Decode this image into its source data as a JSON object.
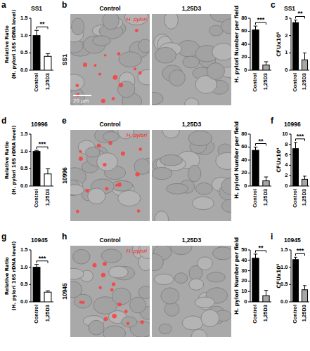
{
  "chart_data": [
    {
      "type": "bar",
      "panel": "a",
      "title": "SS1",
      "ylabel": "Relative Ratio\n(H. pylori 16S rDNA level)",
      "categories": [
        "Control",
        "1,25D3"
      ],
      "values": [
        1.0,
        0.4
      ],
      "errors": [
        0.15,
        0.08
      ],
      "colors": [
        "#000000",
        "#ffffff"
      ],
      "ylim": [
        0,
        1.5
      ],
      "yticks": [
        {
          "value": 0,
          "label": "0.0"
        },
        0.5,
        {
          "value": 1,
          "label": "1.0"
        },
        1.5
      ],
      "significance": "**"
    },
    {
      "type": "bar",
      "ylabel": "H. pylori Number per field",
      "categories": [
        "Control",
        "1,25D3"
      ],
      "values": [
        62,
        8
      ],
      "errors": [
        6,
        5
      ],
      "colors": [
        "#000000",
        "#a6a6a6"
      ],
      "ylim": [
        0,
        80
      ],
      "yticks": [
        0,
        20,
        40,
        60,
        80
      ],
      "significance": "***"
    },
    {
      "type": "bar",
      "panel": "c",
      "title": "SS1",
      "ylabel": "CFUx10⁵",
      "categories": [
        "Control",
        "1,25D3"
      ],
      "values": [
        2.75,
        0.6
      ],
      "errors": [
        0.15,
        0.4
      ],
      "colors": [
        "#000000",
        "#a6a6a6"
      ],
      "ylim": [
        0,
        3
      ],
      "yticks": [
        0,
        1,
        2,
        3
      ],
      "significance": "**"
    },
    {
      "type": "bar",
      "panel": "d",
      "title": "10996",
      "ylabel": "Relative Ratio\n(H. pylori 16S rDNA level)",
      "categories": [
        "Control",
        "1,25D3"
      ],
      "values": [
        1.0,
        0.35
      ],
      "errors": [
        0.03,
        0.15
      ],
      "colors": [
        "#000000",
        "#ffffff"
      ],
      "ylim": [
        0,
        1.5
      ],
      "yticks": [
        {
          "value": 0,
          "label": "0.0"
        },
        0.5,
        {
          "value": 1,
          "label": "1.0"
        },
        1.5
      ],
      "significance": "***"
    },
    {
      "type": "bar",
      "ylabel": "H. pylori Number per field",
      "categories": [
        "Control",
        "1,25D3"
      ],
      "values": [
        55,
        8
      ],
      "errors": [
        5,
        6
      ],
      "colors": [
        "#000000",
        "#a6a6a6"
      ],
      "ylim": [
        0,
        80
      ],
      "yticks": [
        0,
        20,
        40,
        60,
        80
      ],
      "significance": "**"
    },
    {
      "type": "bar",
      "panel": "f",
      "title": "10996",
      "ylabel": "CFUx10⁴",
      "categories": [
        "Control",
        "1,25D3"
      ],
      "values": [
        7.2,
        1.3
      ],
      "errors": [
        1.2,
        0.6
      ],
      "colors": [
        "#000000",
        "#a6a6a6"
      ],
      "ylim": [
        0,
        10
      ],
      "yticks": [
        0,
        2,
        4,
        6,
        8,
        10
      ],
      "significance": "***"
    },
    {
      "type": "bar",
      "panel": "g",
      "title": "10945",
      "ylabel": "Relative Ratio\n(H. pylori 16S rDNA level)",
      "categories": [
        "Control",
        "1,25D3"
      ],
      "values": [
        1.0,
        0.28
      ],
      "errors": [
        0.08,
        0.04
      ],
      "colors": [
        "#000000",
        "#ffffff"
      ],
      "ylim": [
        0,
        1.5
      ],
      "yticks": [
        {
          "value": 0,
          "label": "0.0"
        },
        0.5,
        {
          "value": 1,
          "label": "1.0"
        },
        1.5
      ],
      "significance": "***"
    },
    {
      "type": "bar",
      "ylabel": "H. pylori Number per field",
      "categories": [
        "Control",
        "1,25D3"
      ],
      "values": [
        42,
        6
      ],
      "errors": [
        4,
        5
      ],
      "colors": [
        "#000000",
        "#a6a6a6"
      ],
      "ylim": [
        0,
        50
      ],
      "yticks": [
        0,
        10,
        20,
        30,
        40,
        50
      ],
      "significance": "**"
    },
    {
      "type": "bar",
      "panel": "i",
      "title": "10945",
      "ylabel": "CFUx10⁵",
      "categories": [
        "Control",
        "1,25D3"
      ],
      "values": [
        1.22,
        0.35
      ],
      "errors": [
        0.07,
        0.12
      ],
      "colors": [
        "#000000",
        "#a6a6a6"
      ],
      "ylim": [
        0,
        1.5
      ],
      "yticks": [
        {
          "value": 0,
          "label": "0.0"
        },
        0.5,
        {
          "value": 1,
          "label": "1.0"
        },
        1.5
      ],
      "significance": "***"
    }
  ],
  "images": [
    {
      "panel": "b",
      "strain": "SS1",
      "headers": [
        "Control",
        "1,25D3"
      ],
      "legend": "H. pylori",
      "scale_bar": "20 μm"
    },
    {
      "panel": "e",
      "strain": "10996",
      "headers": [
        "Control",
        "1,25D3"
      ],
      "legend": "H. pylori"
    },
    {
      "panel": "h",
      "strain": "10945",
      "headers": [
        "Control",
        "1,25D3"
      ],
      "legend": "H. pylori"
    }
  ]
}
